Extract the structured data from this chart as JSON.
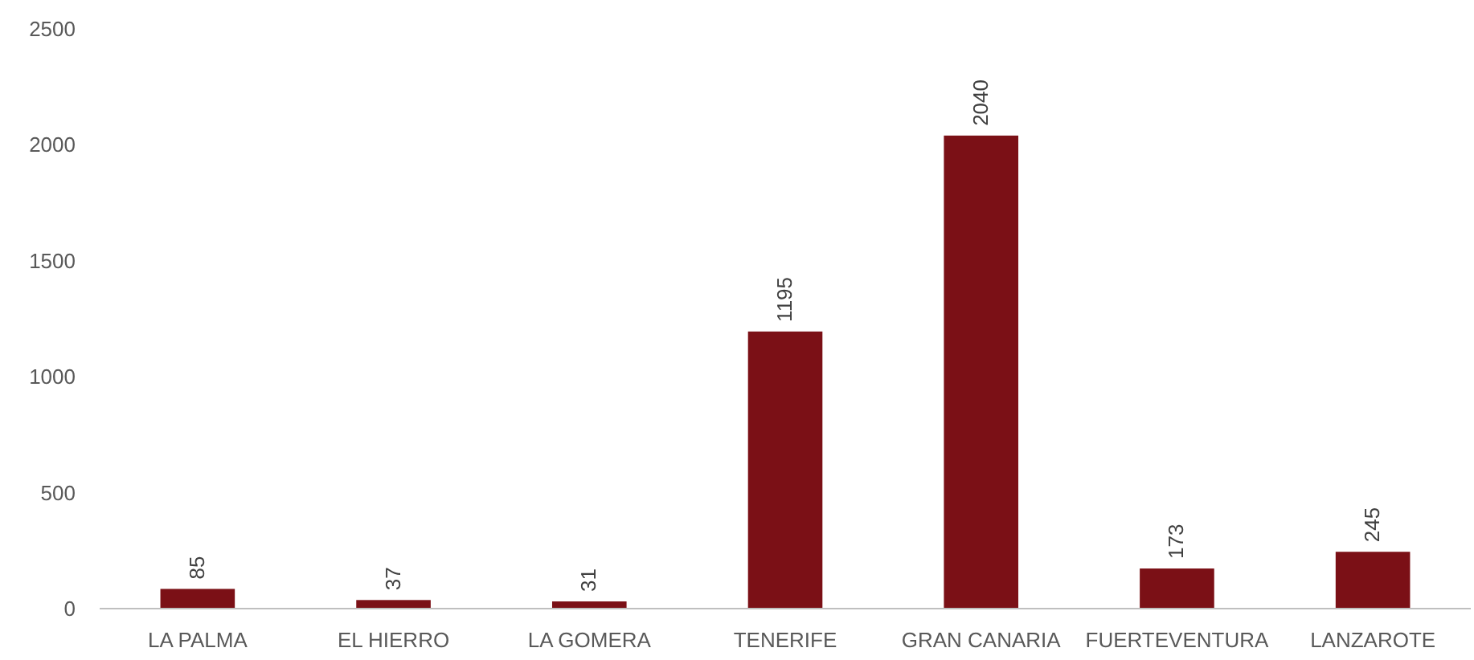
{
  "chart_data": {
    "type": "bar",
    "categories": [
      "LA PALMA",
      "EL HIERRO",
      "LA GOMERA",
      "TENERIFE",
      "GRAN CANARIA",
      "FUERTEVENTURA",
      "LANZAROTE"
    ],
    "values": [
      85,
      37,
      31,
      1195,
      2040,
      173,
      245
    ],
    "color": "#7b1016",
    "ylim": [
      0,
      2500
    ],
    "yticks": [
      0,
      500,
      1000,
      1500,
      2000,
      2500
    ],
    "grid": false,
    "data_labels": true
  }
}
